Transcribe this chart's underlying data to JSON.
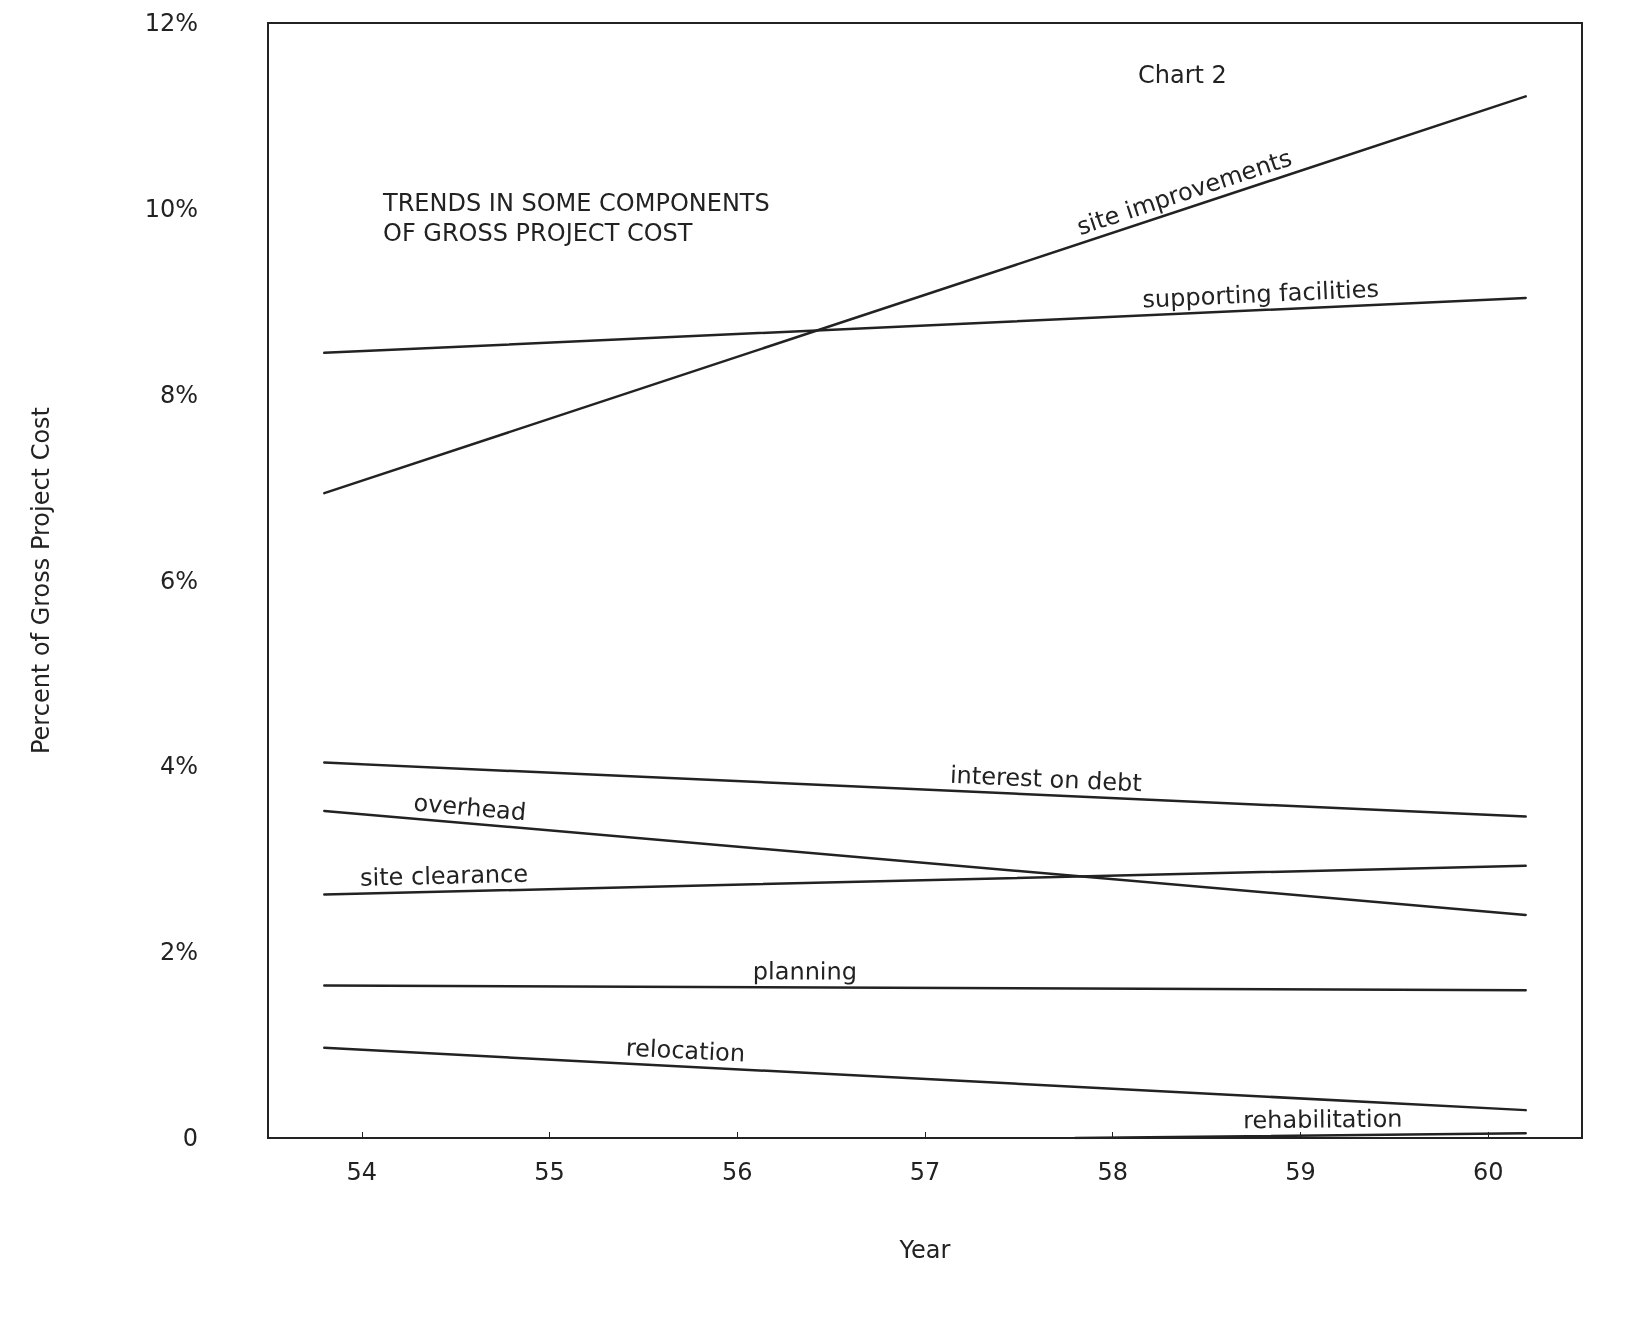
{
  "chart_data": {
    "type": "line",
    "title": "TRENDS IN SOME COMPONENTS\nOF GROSS PROJECT COST",
    "xlabel": "Year",
    "ylabel": "Percent of Gross Project Cost",
    "annotations": [
      "Chart 2"
    ],
    "xlim": [
      53.5,
      60.5
    ],
    "xticks": [
      54,
      55,
      56,
      57,
      58,
      59,
      60
    ],
    "ylim": [
      0,
      12
    ],
    "yticks": [
      0,
      {
        "value": 2,
        "label": "2%"
      },
      {
        "value": 4,
        "label": "4%"
      },
      {
        "value": 6,
        "label": "6%"
      },
      {
        "value": 8,
        "label": "8%"
      },
      {
        "value": 10,
        "label": "10%"
      },
      {
        "value": 12,
        "label": "12%"
      }
    ],
    "grid": false,
    "legend": false,
    "marker": "none",
    "line_style": "solid",
    "series": [
      {
        "name": "site improvements",
        "color": "#222222",
        "x": [
          53.8,
          60.2
        ],
        "values": [
          6.94,
          11.21
        ]
      },
      {
        "name": "supporting facilities",
        "color": "#222222",
        "x": [
          53.8,
          60.2
        ],
        "values": [
          8.45,
          9.04
        ]
      },
      {
        "name": "interest on debt",
        "color": "#222222",
        "x": [
          53.8,
          60.2
        ],
        "values": [
          4.04,
          3.46
        ]
      },
      {
        "name": "overhead",
        "color": "#222222",
        "x": [
          53.8,
          60.2
        ],
        "values": [
          3.52,
          2.4
        ]
      },
      {
        "name": "site clearance",
        "color": "#222222",
        "x": [
          53.8,
          60.2
        ],
        "values": [
          2.62,
          2.93
        ]
      },
      {
        "name": "planning",
        "color": "#222222",
        "x": [
          53.8,
          60.2
        ],
        "values": [
          1.64,
          1.59
        ]
      },
      {
        "name": "relocation",
        "color": "#222222",
        "x": [
          53.8,
          60.2
        ],
        "values": [
          0.97,
          0.3
        ]
      },
      {
        "name": "rehabilitation",
        "color": "#222222",
        "x": [
          57.8,
          60.2
        ],
        "values": [
          0,
          0.05
        ]
      }
    ]
  }
}
